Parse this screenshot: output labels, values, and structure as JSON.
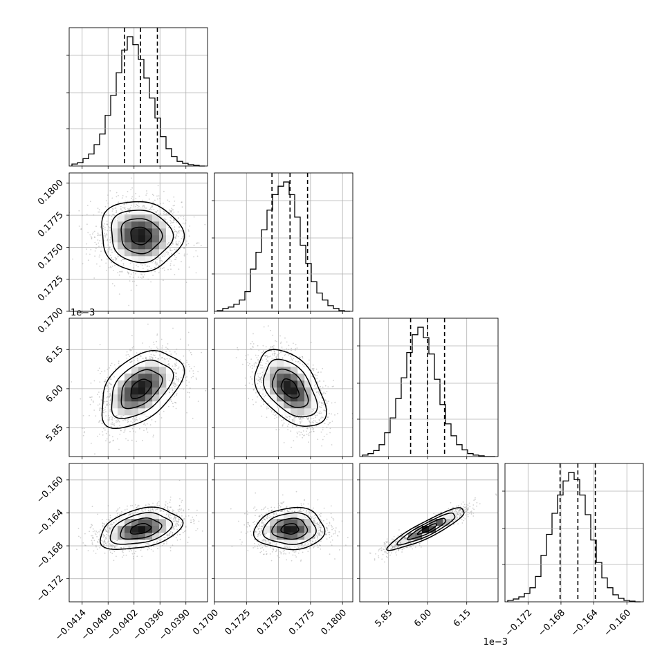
{
  "chart_data": {
    "type": "corner",
    "parameters": [
      {
        "range": [
          -0.0417,
          -0.0385
        ],
        "ticks": [
          -0.0414,
          -0.0408,
          -0.0402,
          -0.0396,
          -0.039
        ],
        "tick_labels": [
          "−0.0414",
          "−0.0408",
          "−0.0402",
          "−0.0396",
          "−0.0390"
        ],
        "offset_label": "",
        "mean": -0.04005,
        "sigma": 0.00045,
        "quantiles": [
          -0.04042,
          -0.04005,
          -0.03966
        ],
        "hist_counts": [
          0.015,
          0.025,
          0.055,
          0.09,
          0.16,
          0.24,
          0.38,
          0.53,
          0.7,
          0.87,
          0.97,
          0.91,
          0.8,
          0.66,
          0.51,
          0.36,
          0.22,
          0.13,
          0.07,
          0.035,
          0.02,
          0.01,
          0.005,
          0.0
        ]
      },
      {
        "range": [
          0.17,
          0.1808
        ],
        "ticks": [
          0.17,
          0.1725,
          0.175,
          0.1775,
          0.18
        ],
        "tick_labels": [
          "0.1700",
          "0.1725",
          "0.1750",
          "0.1775",
          "0.1800"
        ],
        "offset_label": "",
        "mean": 0.1759,
        "sigma": 0.0013,
        "quantiles": [
          0.17449,
          0.1759,
          0.17727
        ],
        "hist_counts": [
          0.005,
          0.02,
          0.03,
          0.05,
          0.08,
          0.14,
          0.3,
          0.42,
          0.58,
          0.72,
          0.83,
          0.89,
          0.92,
          0.83,
          0.67,
          0.47,
          0.34,
          0.21,
          0.13,
          0.08,
          0.04,
          0.02,
          0.005,
          0.0
        ]
      },
      {
        "range": [
          5.74,
          6.27
        ],
        "ticks": [
          5.85,
          6.0,
          6.15
        ],
        "tick_labels": [
          "5.85",
          "6.00",
          "6.15"
        ],
        "offset_label": "1e−3",
        "mean": 6.0,
        "sigma": 0.07,
        "quantiles": [
          5.935,
          6.0,
          6.065
        ],
        "hist_counts": [
          0.01,
          0.02,
          0.04,
          0.08,
          0.16,
          0.26,
          0.39,
          0.53,
          0.7,
          0.82,
          0.87,
          0.8,
          0.69,
          0.52,
          0.35,
          0.22,
          0.14,
          0.08,
          0.045,
          0.02,
          0.01,
          0.005,
          0.0,
          0.0
        ]
      },
      {
        "range": [
          -0.1748,
          -0.158
        ],
        "ticks": [
          -0.172,
          -0.168,
          -0.164,
          -0.16
        ],
        "tick_labels": [
          "−0.172",
          "−0.168",
          "−0.164",
          "−0.160"
        ],
        "offset_label": "",
        "mean": -0.16595,
        "sigma": 0.0012,
        "quantiles": [
          -0.16811,
          -0.16595,
          -0.16383
        ],
        "hist_counts": [
          0.01,
          0.02,
          0.035,
          0.06,
          0.1,
          0.18,
          0.33,
          0.48,
          0.63,
          0.76,
          0.86,
          0.92,
          0.87,
          0.76,
          0.62,
          0.44,
          0.28,
          0.17,
          0.1,
          0.05,
          0.025,
          0.01,
          0.005,
          0.0
        ]
      }
    ],
    "correlations": [
      [
        0,
        0,
        0,
        0
      ],
      [
        -0.05,
        0,
        0,
        0
      ],
      [
        0.45,
        -0.45,
        0,
        0
      ],
      [
        0.35,
        0.05,
        0.9,
        0
      ]
    ],
    "contour_levels_sigma": [
      0.5,
      1.0,
      1.5,
      2.0
    ],
    "quantiles": [
      0.16,
      0.5,
      0.84
    ],
    "grid": true,
    "colors": {
      "hist": "#000000",
      "points": "#9a9a9a",
      "grid": "#b0b0b0"
    }
  }
}
